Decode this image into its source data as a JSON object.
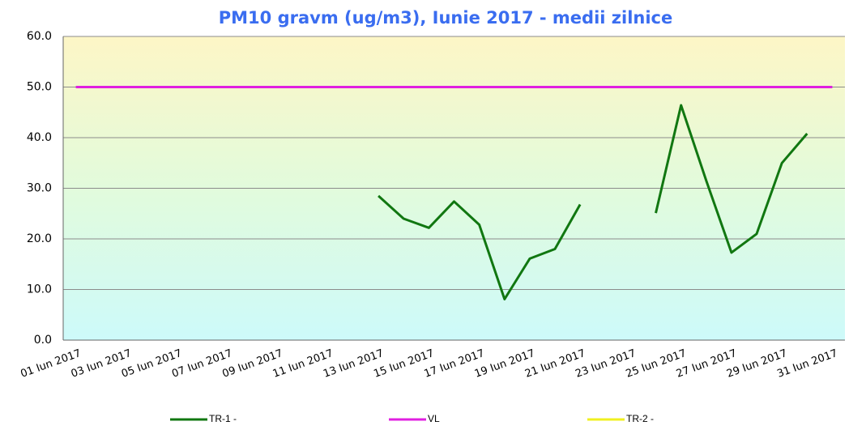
{
  "chart_data": {
    "type": "line",
    "title": "PM10 gravm (ug/m3), Iunie 2017 - medii zilnice",
    "categories": [
      "01 Iun 2017",
      null,
      "03 Iun 2017",
      null,
      "05 Iun 2017",
      null,
      "07 Iun 2017",
      null,
      "09 Iun 2017",
      null,
      "11 Iun 2017",
      null,
      "13 Iun 2017",
      null,
      "15 Iun 2017",
      null,
      "17 Iun 2017",
      null,
      "19 Iun 2017",
      null,
      "21 Iun 2017",
      null,
      "23 Iun 2017",
      null,
      "25 Iun 2017",
      null,
      "27 Iun 2017",
      null,
      "29 Iun 2017",
      null,
      "31 Iun 2017"
    ],
    "series": [
      {
        "name": "TR-1 -",
        "color": "#117711",
        "values": [
          null,
          null,
          null,
          null,
          null,
          null,
          null,
          null,
          null,
          null,
          null,
          null,
          28.5,
          24,
          22.2,
          27.4,
          22.8,
          8.1,
          16.1,
          18,
          26.8,
          null,
          null,
          25.1,
          46.4,
          31.5,
          17.3,
          21,
          35,
          40.8,
          null
        ]
      },
      {
        "name": "VL",
        "color": "#e020e0",
        "values": [
          50,
          50,
          50,
          50,
          50,
          50,
          50,
          50,
          50,
          50,
          50,
          50,
          50,
          50,
          50,
          50,
          50,
          50,
          50,
          50,
          50,
          50,
          50,
          50,
          50,
          50,
          50,
          50,
          50,
          50,
          50
        ]
      },
      {
        "name": "TR-2 -",
        "color": "#f0f020",
        "values": [
          null,
          null,
          null,
          null,
          null,
          null,
          null,
          null,
          null,
          null,
          null,
          null,
          null,
          null,
          null,
          null,
          null,
          null,
          null,
          null,
          null,
          null,
          null,
          null,
          null,
          null,
          null,
          null,
          null,
          null,
          null
        ]
      }
    ],
    "ylim": [
      0,
      60
    ],
    "yticks": [
      {
        "value": 0,
        "label": "0.0"
      },
      {
        "value": 10,
        "label": "10.0"
      },
      {
        "value": 20,
        "label": "20.0"
      },
      {
        "value": 30,
        "label": "30.0"
      },
      {
        "value": 40,
        "label": "40.0"
      },
      {
        "value": 50,
        "label": "50.0"
      },
      {
        "value": 60,
        "label": "60.0"
      }
    ],
    "grid": true,
    "legend": "bottom"
  }
}
